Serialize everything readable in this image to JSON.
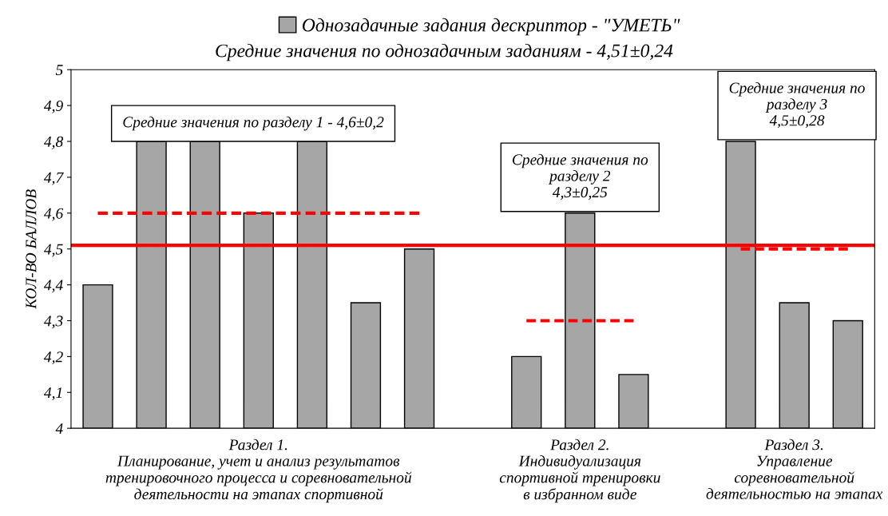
{
  "chart_data": {
    "type": "bar",
    "title": "Средние значения по однозадачным заданиям - 4,51±0,24",
    "ylabel": "КОЛ-ВО БАЛЛОВ",
    "categories": [
      null,
      null,
      null,
      null,
      null,
      null,
      null,
      null,
      null,
      null,
      null,
      null,
      null,
      null,
      null
    ],
    "series": [
      {
        "name": "Однозадачные задания дескриптор - \"УМЕТЬ\"",
        "color": "#a6a6a6",
        "values": [
          4.4,
          4.8,
          4.8,
          4.6,
          4.8,
          4.35,
          4.5,
          null,
          4.2,
          4.6,
          4.15,
          null,
          4.8,
          4.35,
          4.3
        ]
      },
      {
        "type": "line",
        "color": "#ff0000",
        "line_style": "dashed",
        "values": [
          4.6,
          4.6,
          4.6,
          4.6,
          4.6,
          4.6,
          4.6,
          null,
          null,
          null,
          null,
          null,
          null,
          null,
          null
        ]
      },
      {
        "type": "line",
        "color": "#ff0000",
        "line_style": "dashed",
        "values": [
          null,
          null,
          null,
          null,
          null,
          null,
          null,
          null,
          4.3,
          4.3,
          4.3,
          null,
          null,
          null,
          null
        ]
      },
      {
        "type": "line",
        "color": "#ff0000",
        "line_style": "dashed",
        "values": [
          null,
          null,
          null,
          null,
          null,
          null,
          null,
          null,
          null,
          null,
          null,
          null,
          4.5,
          4.5,
          4.5
        ]
      }
    ],
    "ref_lines": [
      {
        "axis": "y",
        "value": 4.51,
        "label": null,
        "color": "#ff0000",
        "line_style": "solid"
      }
    ],
    "ylim": [
      4,
      5
    ],
    "yticks": [
      4,
      {
        "value": 4.1,
        "label": "4,1"
      },
      {
        "value": 4.2,
        "label": "4,2"
      },
      {
        "value": 4.3,
        "label": "4,3"
      },
      {
        "value": 4.4,
        "label": "4,4"
      },
      {
        "value": 4.5,
        "label": "4,5"
      },
      {
        "value": 4.6,
        "label": "4,6"
      },
      {
        "value": 4.7,
        "label": "4,7"
      },
      {
        "value": 4.8,
        "label": "4,8"
      },
      {
        "value": 4.9,
        "label": "4,9"
      },
      5
    ],
    "annotations": [
      "Средние значения по разделу 1 - 4,6±0,2",
      "Средние значения по\nразделу 2\n4,3±0,25",
      "Средние значения по\nразделу 3\n4,5±0,28",
      "Раздел 1.\nПланирование, учет и анализ результатов\nтренировочного процесса и соревновательной\nдеятельности на этапах спортивной",
      "Раздел 2.\nИндивидуализация\nспортивной тренировки\nв избранном виде",
      "Раздел 3.\nУправление\nсоревновательной\nдеятельностью на этапах"
    ],
    "grid": false,
    "legend": "top"
  }
}
